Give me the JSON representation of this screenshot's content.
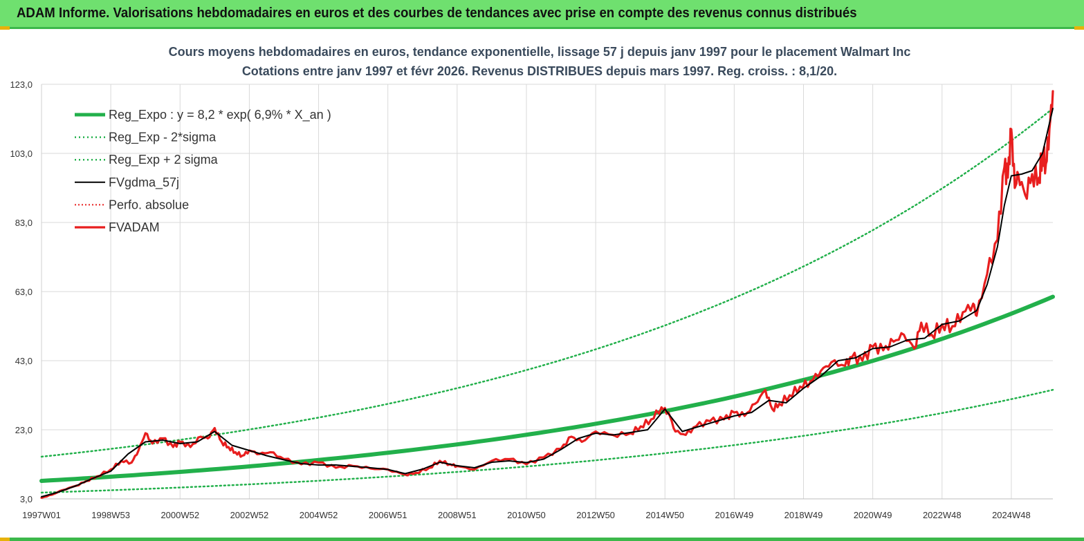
{
  "banner": {
    "title": "ADAM Informe. Valorisations hebdomadaires en euros et des courbes de tendances avec prise en compte des revenus connus distribués"
  },
  "chart_data": {
    "type": "line",
    "title": "Cours moyens hebdomadaires en euros, tendance exponentielle, lissage 57 j depuis janv 1997 pour le placement Walmart Inc",
    "subtitle": "Cotations entre janv 1997 et févr 2026. Revenus DISTRIBUES depuis mars 1997. Reg. croiss. : 8,1/20.",
    "ylim": [
      3,
      128
    ],
    "y_ticks": [
      "3,0",
      "23,0",
      "43,0",
      "63,0",
      "83,0",
      "103,0",
      "123,0"
    ],
    "x_range": [
      1997.0,
      2026.2
    ],
    "x_ticks": [
      {
        "label": "1997W01",
        "x": 1997.0
      },
      {
        "label": "1998W53",
        "x": 1999.0
      },
      {
        "label": "2000W52",
        "x": 2001.0
      },
      {
        "label": "2002W52",
        "x": 2003.0
      },
      {
        "label": "2004W52",
        "x": 2005.0
      },
      {
        "label": "2006W51",
        "x": 2007.0
      },
      {
        "label": "2008W51",
        "x": 2009.0
      },
      {
        "label": "2010W50",
        "x": 2011.0
      },
      {
        "label": "2012W50",
        "x": 2013.0
      },
      {
        "label": "2014W50",
        "x": 2015.0
      },
      {
        "label": "2016W49",
        "x": 2017.0
      },
      {
        "label": "2018W49",
        "x": 2019.0
      },
      {
        "label": "2020W49",
        "x": 2021.0
      },
      {
        "label": "2022W48",
        "x": 2023.0
      },
      {
        "label": "2024W48",
        "x": 2025.0
      }
    ],
    "grid": true,
    "legend_position": "top-left",
    "colors": {
      "reg": "#22b04b",
      "gdma": "#000000",
      "perfo": "#e81e1e",
      "fvadam": "#e81e1e"
    },
    "series": [
      {
        "name": "Reg_Expo : y = 8,2 * exp( 6,9% *  X_an )",
        "style": "thick-green",
        "x": [
          1997.0,
          2026.2
        ],
        "formula": {
          "a": 8.2,
          "rate": 0.069
        }
      },
      {
        "name": "Reg_Exp - 2*sigma",
        "style": "dotted-green",
        "x": [
          1997.0,
          2026.2
        ],
        "formula": {
          "a": 4.8,
          "rate": 0.0676
        }
      },
      {
        "name": "Reg_Exp + 2 sigma",
        "style": "dotted-green",
        "x": [
          1997.0,
          2026.2
        ],
        "formula": {
          "a": 15.2,
          "rate": 0.0696
        }
      },
      {
        "name": "FVgdma_57j",
        "style": "black-line",
        "x": [
          1997.0,
          1997.5,
          1998.0,
          1998.5,
          1999.0,
          1999.5,
          2000.0,
          2000.5,
          2001.0,
          2001.5,
          2002.0,
          2002.5,
          2003.0,
          2003.5,
          2004.0,
          2004.5,
          2005.0,
          2005.5,
          2006.0,
          2006.5,
          2007.0,
          2007.5,
          2008.0,
          2008.5,
          2009.0,
          2009.5,
          2010.0,
          2010.5,
          2011.0,
          2011.5,
          2012.0,
          2012.5,
          2013.0,
          2013.5,
          2014.0,
          2014.5,
          2015.0,
          2015.5,
          2016.0,
          2016.5,
          2017.0,
          2017.5,
          2018.0,
          2018.5,
          2019.0,
          2019.5,
          2020.0,
          2020.5,
          2021.0,
          2021.5,
          2022.0,
          2022.5,
          2023.0,
          2023.5,
          2024.0,
          2024.3,
          2024.6,
          2024.8,
          2025.0,
          2025.3,
          2025.6,
          2025.9,
          2026.2
        ],
        "y": [
          3.6,
          5.0,
          6.8,
          9.0,
          11.0,
          16.0,
          19.5,
          20.0,
          19.0,
          19.5,
          22.5,
          18.5,
          17.0,
          15.5,
          14.3,
          13.2,
          12.8,
          12.8,
          12.4,
          12.0,
          11.5,
          10.3,
          11.6,
          13.6,
          12.6,
          12.0,
          13.6,
          14.0,
          13.5,
          14.5,
          17.3,
          20.5,
          22.0,
          21.5,
          22.2,
          23.0,
          29.0,
          22.5,
          24.0,
          25.5,
          27.0,
          28.0,
          31.5,
          30.8,
          35.0,
          38.5,
          43.0,
          43.8,
          46.5,
          47.0,
          49.0,
          49.5,
          53.5,
          54.5,
          57.5,
          65.0,
          76.0,
          88.0,
          96.5,
          97.0,
          98.0,
          103.0,
          116.0
        ]
      },
      {
        "name": "Perfo. absolue",
        "style": "dotted-red",
        "x": [],
        "y": []
      },
      {
        "name": "FVADAM",
        "style": "thick-red",
        "x": [
          1997.0,
          1997.3,
          1997.6,
          1998.0,
          1998.3,
          1998.6,
          1999.0,
          1999.3,
          1999.6,
          1999.8,
          2000.0,
          2000.2,
          2000.5,
          2000.8,
          2001.0,
          2001.3,
          2001.6,
          2001.8,
          2002.0,
          2002.2,
          2002.4,
          2002.6,
          2002.8,
          2003.0,
          2003.3,
          2003.6,
          2004.0,
          2004.5,
          2005.0,
          2005.5,
          2006.0,
          2006.5,
          2007.0,
          2007.5,
          2007.8,
          2008.2,
          2008.5,
          2008.8,
          2009.0,
          2009.5,
          2010.0,
          2010.5,
          2011.0,
          2011.5,
          2012.0,
          2012.3,
          2012.6,
          2013.0,
          2013.5,
          2014.0,
          2014.3,
          2014.6,
          2014.9,
          2015.1,
          2015.3,
          2015.6,
          2015.9,
          2016.3,
          2016.7,
          2017.0,
          2017.3,
          2017.6,
          2017.9,
          2018.1,
          2018.3,
          2018.6,
          2018.9,
          2019.2,
          2019.5,
          2019.8,
          2020.2,
          2020.4,
          2020.7,
          2021.0,
          2021.3,
          2021.6,
          2021.9,
          2022.2,
          2022.4,
          2022.7,
          2023.0,
          2023.3,
          2023.6,
          2023.9,
          2024.0,
          2024.3,
          2024.6,
          2024.8,
          2024.9,
          2025.0,
          2025.1,
          2025.2,
          2025.4,
          2025.6,
          2025.8,
          2025.9,
          2026.0,
          2026.1,
          2026.2
        ],
        "y": [
          3.3,
          4.2,
          5.5,
          6.8,
          8.2,
          9.5,
          11.5,
          14.0,
          13.5,
          17.0,
          22.0,
          19.0,
          20.5,
          18.0,
          19.5,
          18.0,
          21.0,
          20.5,
          23.5,
          19.5,
          18.0,
          16.5,
          15.5,
          17.0,
          16.0,
          16.5,
          14.5,
          13.0,
          13.5,
          12.0,
          12.5,
          11.8,
          11.5,
          10.0,
          10.5,
          12.0,
          14.0,
          13.0,
          12.5,
          11.5,
          14.0,
          14.5,
          13.0,
          15.0,
          17.5,
          21.0,
          19.5,
          22.5,
          21.5,
          22.0,
          24.0,
          26.0,
          29.5,
          28.0,
          22.5,
          21.5,
          24.0,
          25.5,
          26.0,
          28.0,
          27.0,
          30.5,
          34.5,
          29.0,
          30.5,
          33.0,
          35.5,
          37.0,
          40.0,
          42.5,
          41.5,
          44.0,
          43.0,
          47.0,
          46.0,
          48.5,
          50.5,
          46.5,
          54.0,
          50.5,
          53.5,
          53.0,
          57.0,
          59.5,
          56.0,
          68.0,
          78.0,
          99.0,
          96.0,
          110.0,
          93.0,
          97.0,
          91.0,
          97.0,
          96.0,
          103.0,
          100.0,
          110.0,
          121.0
        ]
      }
    ]
  }
}
